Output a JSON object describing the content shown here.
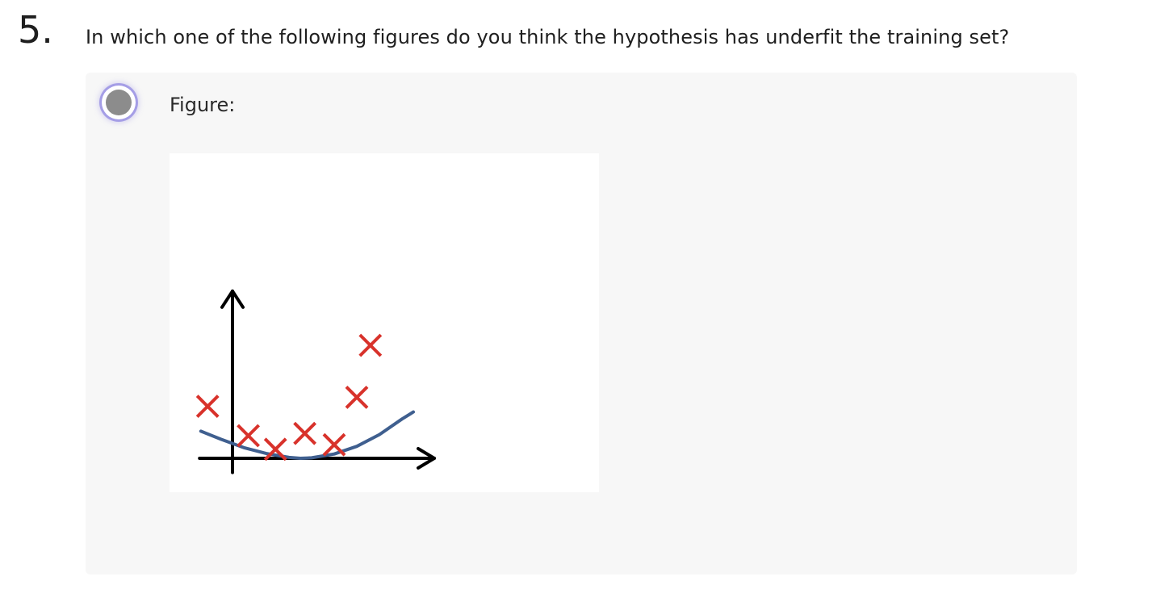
{
  "question": {
    "number": "5.",
    "text": "In which one of the following figures do you think the hypothesis has underfit the training set?"
  },
  "option": {
    "label": "Figure:",
    "selected": true
  },
  "colors": {
    "axis": "#000000",
    "marker": "#d8322b",
    "curve": "#3f5f8f",
    "card_background": "#f7f7f7",
    "radio_fill": "#8c8c8c",
    "radio_focus": "#786edc"
  },
  "chart_data": {
    "type": "scatter",
    "title": "",
    "xlabel": "",
    "ylabel": "",
    "grid": false,
    "xlim": [
      -1.6,
      9
    ],
    "ylim": [
      -0.7,
      7.4
    ],
    "points": [
      {
        "x": -1.1,
        "y": 2.3
      },
      {
        "x": 0.7,
        "y": 1.0
      },
      {
        "x": 1.9,
        "y": 0.4
      },
      {
        "x": 3.2,
        "y": 1.1
      },
      {
        "x": 4.5,
        "y": 0.6
      },
      {
        "x": 5.5,
        "y": 2.7
      },
      {
        "x": 6.1,
        "y": 5.0
      }
    ],
    "fit_curve": {
      "type": "quadratic",
      "x": [
        -1.4,
        -0.5,
        0.5,
        1.5,
        2.5,
        3.0,
        3.5,
        4.5,
        5.5,
        6.5,
        7.5,
        8.0
      ],
      "y": [
        1.2,
        0.84,
        0.47,
        0.21,
        0.04,
        0.0,
        0.02,
        0.19,
        0.53,
        1.05,
        1.74,
        2.05
      ]
    }
  }
}
